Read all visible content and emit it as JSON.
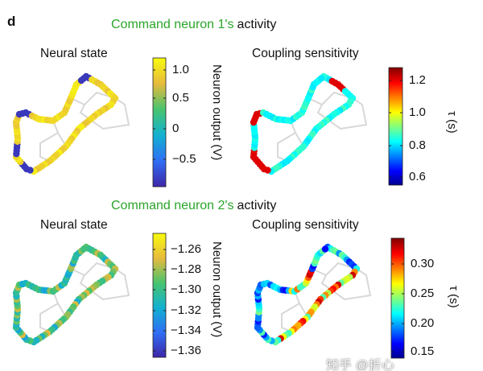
{
  "panel_letter": "d",
  "rows": [
    {
      "title_green": "Command neuron 1's",
      "title_rest": "activity",
      "left": {
        "title": "Neural state",
        "colorbar_label": "Neuron output (V)",
        "ticks": [
          "1.0",
          "0.5",
          "0",
          "−0.5"
        ],
        "colormap": "parula"
      },
      "right": {
        "title": "Coupling sensitivity",
        "colorbar_label": "τ (s)",
        "ticks": [
          "1.2",
          "1.0",
          "0.8",
          "0.6"
        ],
        "colormap": "jet"
      }
    },
    {
      "title_green": "Command neuron 2's",
      "title_rest": "activity",
      "left": {
        "title": "Neural state",
        "colorbar_label": "Neuron output (V)",
        "ticks": [
          "−1.26",
          "−1.28",
          "−1.30",
          "−1.32",
          "−1.34",
          "−1.36"
        ],
        "colormap": "parula"
      },
      "right": {
        "title": "Coupling sensitivity",
        "colorbar_label": "τ (s)",
        "ticks": [
          "0.30",
          "0.25",
          "0.20",
          "0.15"
        ],
        "colormap": "jet"
      }
    }
  ],
  "watermark": "知乎 @折心",
  "colors": {
    "title_green": "#2aa52a"
  }
}
